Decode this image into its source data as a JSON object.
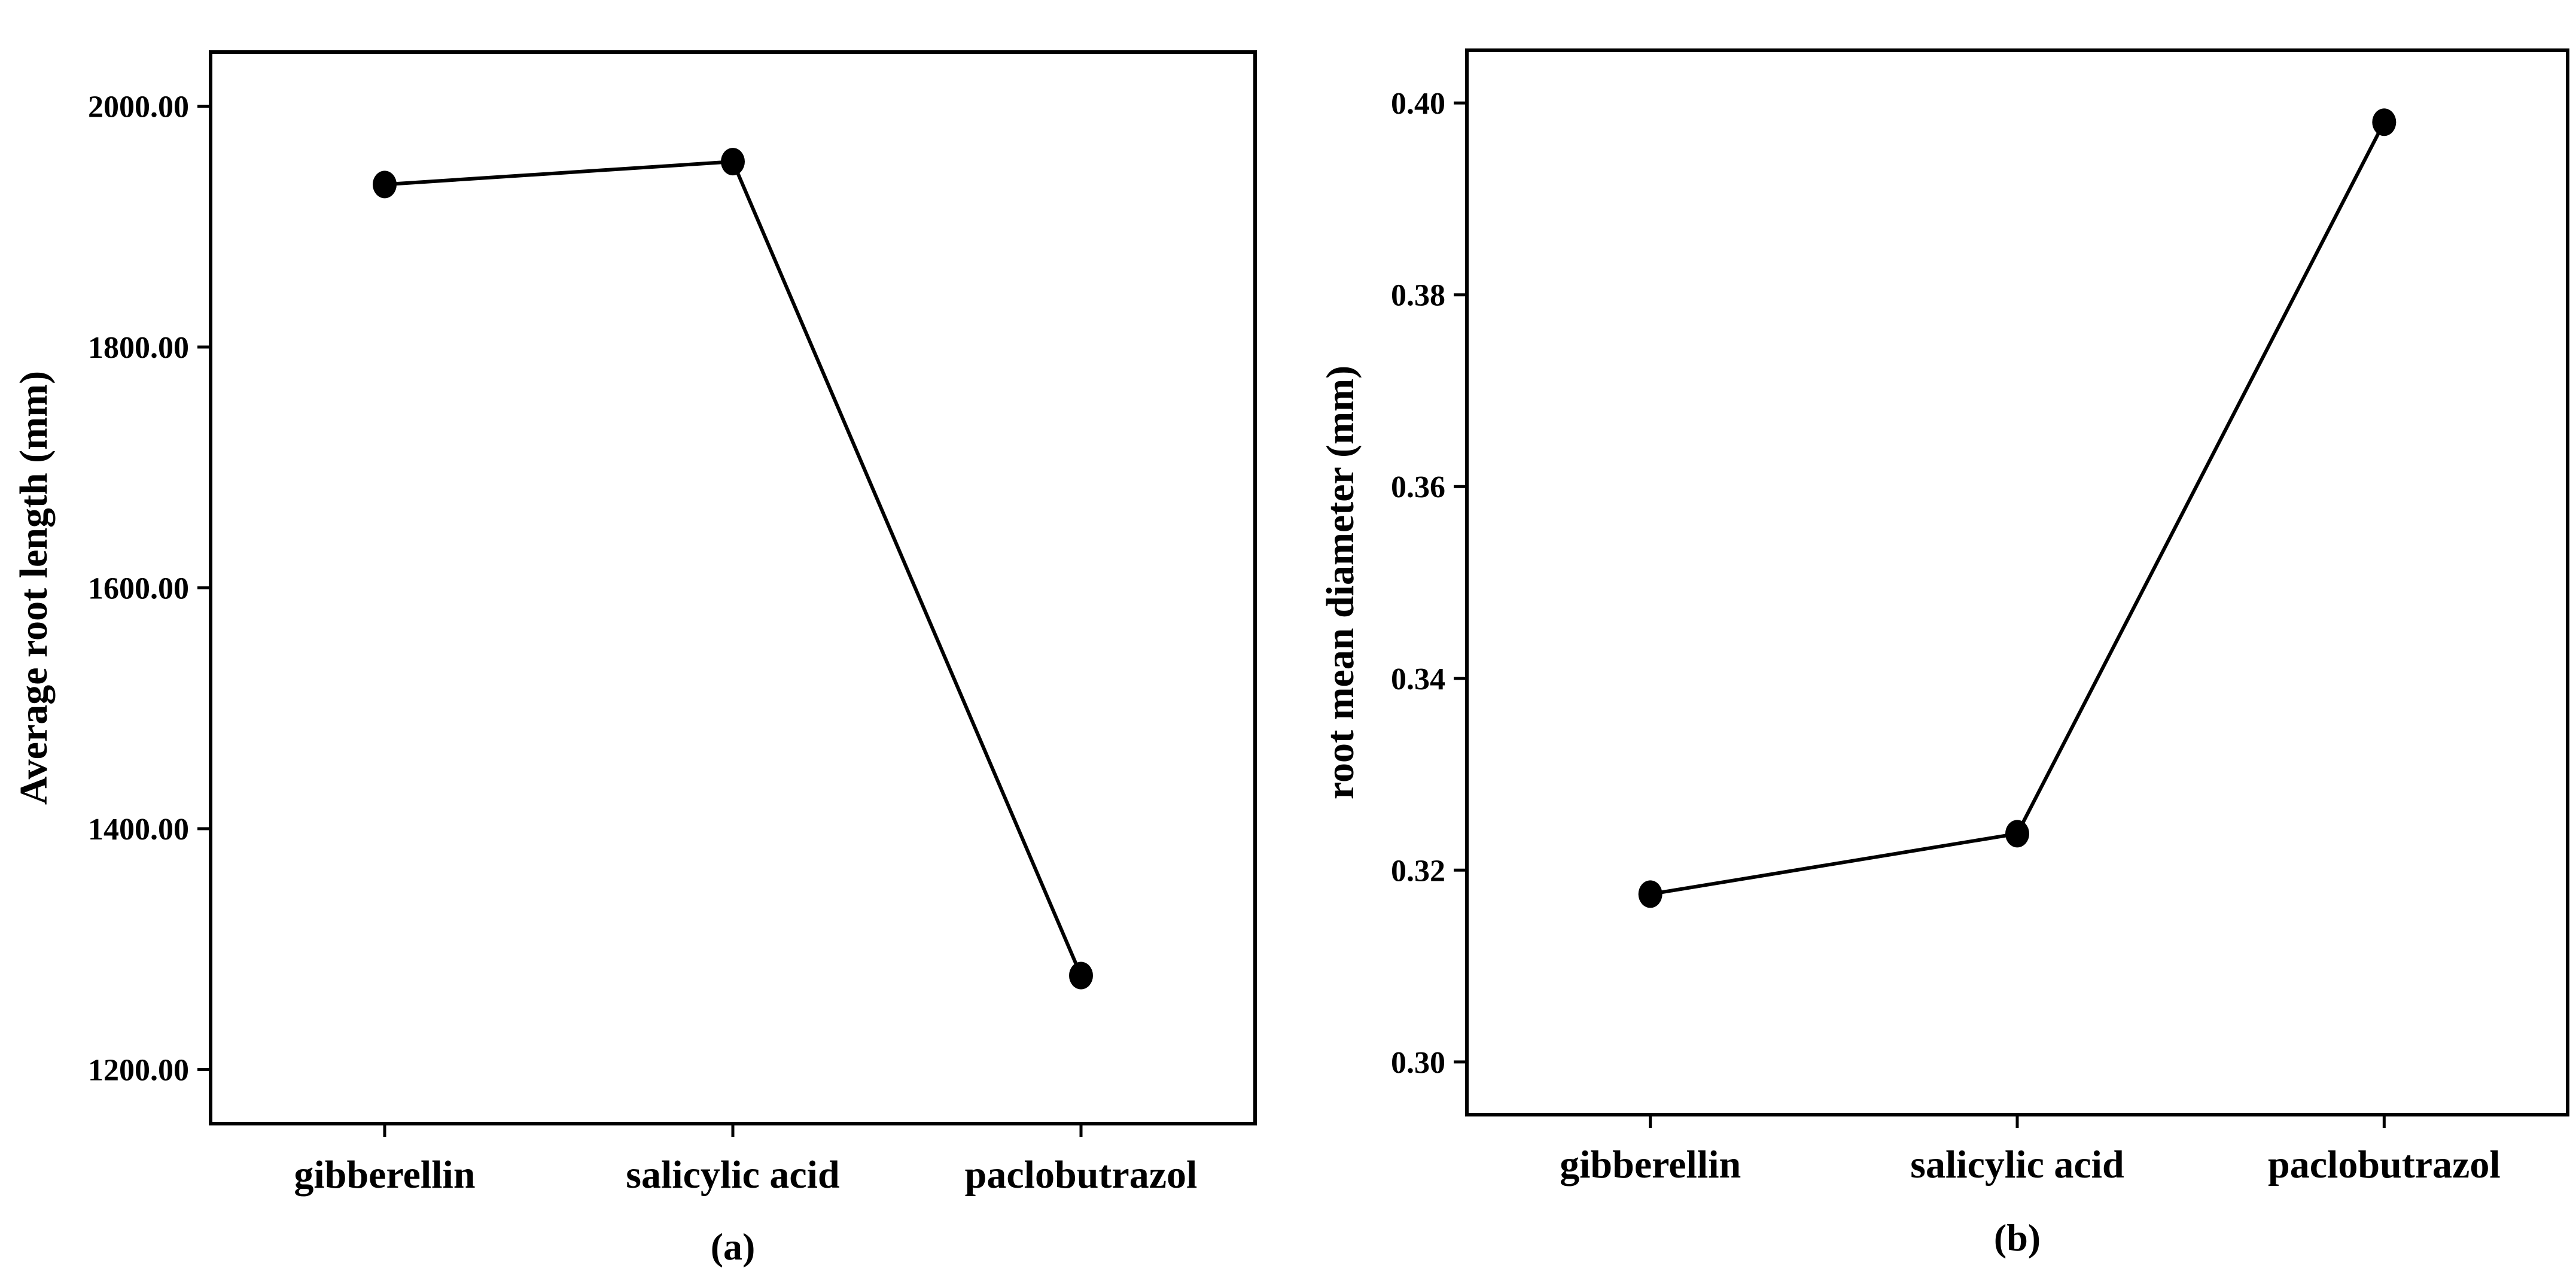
{
  "chart_data": [
    {
      "type": "line",
      "panel_label": "(a)",
      "title": "",
      "xlabel": "",
      "ylabel": "Average root length (mm)",
      "categories": [
        "gibberellin",
        "salicylic acid",
        "paclobutrazol"
      ],
      "values": [
        1935,
        1954,
        1278
      ],
      "ylim": [
        1155,
        2045
      ],
      "yticks": [
        1200,
        1400,
        1600,
        1800,
        2000
      ],
      "ytick_labels": [
        "1200.00",
        "1400.00",
        "1600.00",
        "1800.00",
        "2000.00"
      ],
      "grid": false,
      "marker": "circle",
      "color": "#000000"
    },
    {
      "type": "line",
      "panel_label": "(b)",
      "title": "",
      "xlabel": "",
      "ylabel": "root mean diameter (mm)",
      "categories": [
        "gibberellin",
        "salicylic acid",
        "paclobutrazol"
      ],
      "values": [
        0.3175,
        0.3238,
        0.398
      ],
      "ylim": [
        0.2945,
        0.4055
      ],
      "yticks": [
        0.3,
        0.32,
        0.34,
        0.36,
        0.38,
        0.4
      ],
      "ytick_labels": [
        "0.30",
        "0.32",
        "0.34",
        "0.36",
        "0.38",
        "0.40"
      ],
      "grid": false,
      "marker": "circle",
      "color": "#000000"
    }
  ]
}
